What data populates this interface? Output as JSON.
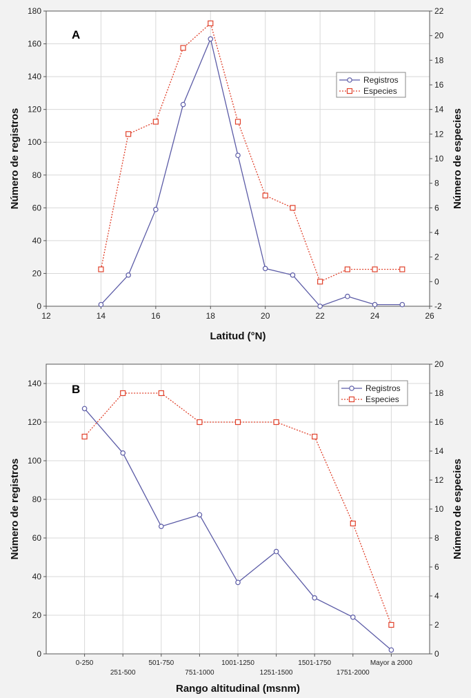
{
  "colors": {
    "registros": "#5b5ba6",
    "especies": "#e0402a",
    "plot_bg": "#ffffff",
    "frame": "#555555"
  },
  "chart_data": [
    {
      "panel": "A",
      "type": "line",
      "xlabel": "Latitud (°N)",
      "ylabel_left": "Número de registros",
      "ylabel_right": "Número de especies",
      "xlim": [
        12,
        26
      ],
      "ylim_left": [
        0,
        180
      ],
      "ylim_right": [
        -2,
        22
      ],
      "x_ticks": [
        "12",
        "14",
        "16",
        "18",
        "20",
        "22",
        "24",
        "26"
      ],
      "y_left_ticks": [
        "0",
        "20",
        "40",
        "60",
        "80",
        "100",
        "120",
        "140",
        "160",
        "180"
      ],
      "y_right_ticks": [
        "-2",
        "0",
        "2",
        "4",
        "6",
        "8",
        "10",
        "12",
        "14",
        "16",
        "18",
        "20",
        "22"
      ],
      "legend": [
        "Registros",
        "Especies"
      ],
      "legend_position": "right",
      "grid": true,
      "series": [
        {
          "name": "Registros",
          "axis": "left",
          "marker": "circle",
          "style": "solid",
          "x": [
            14,
            15,
            16,
            17,
            18,
            19,
            20,
            21,
            22,
            23,
            24,
            25
          ],
          "y": [
            1,
            19,
            59,
            123,
            163,
            92,
            23,
            19,
            0,
            6,
            1,
            1
          ]
        },
        {
          "name": "Especies",
          "axis": "right",
          "marker": "square",
          "style": "dotted",
          "x": [
            14,
            15,
            16,
            17,
            18,
            19,
            20,
            21,
            22,
            23,
            24,
            25
          ],
          "y": [
            1,
            12,
            13,
            19,
            21,
            13,
            7,
            6,
            0,
            1,
            1,
            1
          ]
        }
      ]
    },
    {
      "panel": "B",
      "type": "line",
      "xlabel": "Rango altitudinal (msnm)",
      "ylabel_left": "Número de registros",
      "ylabel_right": "Número de especies",
      "categories": [
        "0-250",
        "251-500",
        "501-750",
        "751-1000",
        "1001-1250",
        "1251-1500",
        "1501-1750",
        "1751-2000",
        "Mayor a 2000"
      ],
      "ylim_left": [
        0,
        150
      ],
      "ylim_right": [
        0,
        20
      ],
      "y_left_ticks": [
        "0",
        "20",
        "40",
        "60",
        "80",
        "100",
        "120",
        "140"
      ],
      "y_right_ticks": [
        "0",
        "2",
        "4",
        "6",
        "8",
        "10",
        "12",
        "14",
        "16",
        "18",
        "20"
      ],
      "legend": [
        "Registros",
        "Especies"
      ],
      "legend_position": "top-right",
      "grid": true,
      "series": [
        {
          "name": "Registros",
          "axis": "left",
          "marker": "circle",
          "style": "solid",
          "values": [
            127,
            104,
            66,
            72,
            37,
            53,
            29,
            19,
            2
          ]
        },
        {
          "name": "Especies",
          "axis": "right",
          "marker": "square",
          "style": "dotted",
          "values": [
            15,
            18,
            18,
            16,
            16,
            16,
            15,
            9,
            2
          ]
        }
      ]
    }
  ]
}
